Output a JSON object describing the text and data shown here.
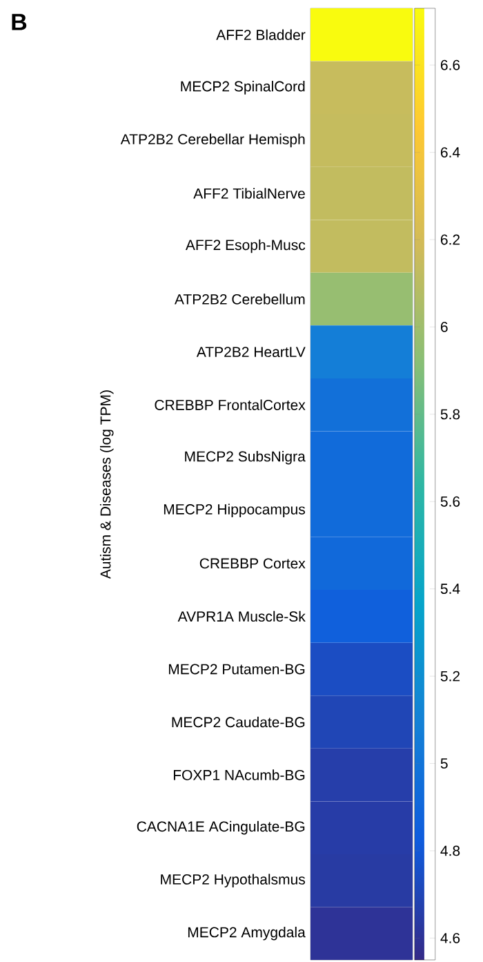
{
  "chart_data": {
    "type": "heatmap",
    "ylabel": "Autism & Diseases (log TPM)",
    "annotations": [
      "B"
    ],
    "categories": [
      null
    ],
    "y_categories": [
      "AFF2 Bladder",
      "MECP2 SpinalCord",
      "ATP2B2 Cerebellar Hemisph",
      "AFF2 TibialNerve",
      "AFF2 Esoph-Musc",
      "ATP2B2 Cerebellum",
      "ATP2B2 HeartLV",
      "CREBBP FrontalCortex",
      "MECP2 SubsNigra",
      "MECP2 Hippocampus",
      "CREBBP Cortex",
      "AVPR1A Muscle-Sk",
      "MECP2 Putamen-BG",
      "MECP2 Caudate-BG",
      "FOXP1 NAcumb-BG",
      "CACNA1E ACingulate-BG",
      "MECP2 Hypothalsmus",
      "MECP2 Amygdala"
    ],
    "cells": [
      [
        6.73
      ],
      [
        6.15
      ],
      [
        6.14
      ],
      [
        6.13
      ],
      [
        6.13
      ],
      [
        5.97
      ],
      [
        5.07
      ],
      [
        4.97
      ],
      [
        4.93
      ],
      [
        4.93
      ],
      [
        4.92
      ],
      [
        4.85
      ],
      [
        4.74
      ],
      [
        4.7
      ],
      [
        4.66
      ],
      [
        4.65
      ],
      [
        4.64
      ],
      [
        4.6
      ]
    ],
    "clim": [
      4.55,
      6.73
    ],
    "cticks": [
      4.6,
      4.8,
      5,
      5.2,
      5.4,
      5.6,
      5.8,
      6,
      6.2,
      6.4,
      6.6
    ]
  }
}
